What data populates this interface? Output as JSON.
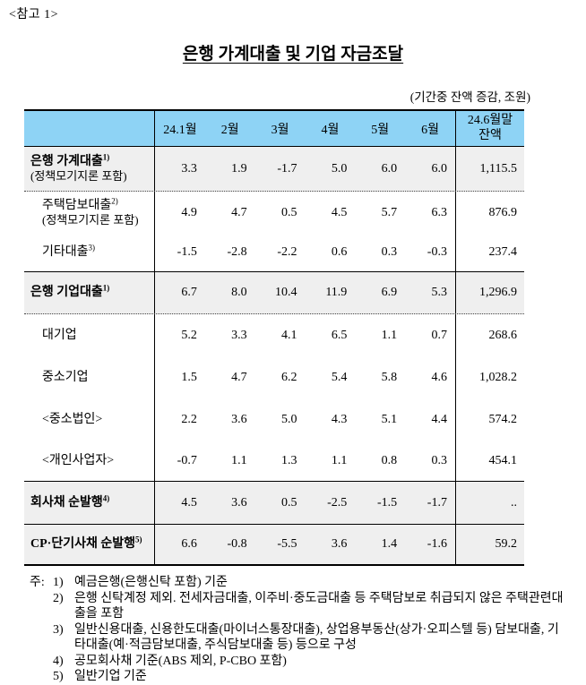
{
  "reference_label": "<참고 1>",
  "title": "은행 가계대출 및 기업 자금조달",
  "unit_note": "(기간중 잔액 증감, 조원)",
  "colors": {
    "header_blue": "#8ed3f5",
    "shaded_row_gray": "#efefef",
    "text": "#000000"
  },
  "table": {
    "columns": [
      "24.1월",
      "2월",
      "3월",
      "4월",
      "5월",
      "6월"
    ],
    "balance_header_line1": "24.6월말",
    "balance_header_line2": "잔액",
    "rows": [
      {
        "label": "은행 가계대출",
        "sup": "1)",
        "sublabel": "(정책모기지론 포함)",
        "values": [
          "3.3",
          "1.9",
          "-1.7",
          "5.0",
          "6.0",
          "6.0"
        ],
        "balance": "1,115.5"
      },
      {
        "label": "주택담보대출",
        "sup": "2)",
        "sublabel": "(정책모기지론 포함)",
        "values": [
          "4.9",
          "4.7",
          "0.5",
          "4.5",
          "5.7",
          "6.3"
        ],
        "balance": "876.9"
      },
      {
        "label": "기타대출",
        "sup": "3)",
        "sublabel": "",
        "values": [
          "-1.5",
          "-2.8",
          "-2.2",
          "0.6",
          "0.3",
          "-0.3"
        ],
        "balance": "237.4"
      },
      {
        "label": "은행 기업대출",
        "sup": "1)",
        "sublabel": "",
        "values": [
          "6.7",
          "8.0",
          "10.4",
          "11.9",
          "6.9",
          "5.3"
        ],
        "balance": "1,296.9"
      },
      {
        "label": "대기업",
        "sup": "",
        "sublabel": "",
        "values": [
          "5.2",
          "3.3",
          "4.1",
          "6.5",
          "1.1",
          "0.7"
        ],
        "balance": "268.6"
      },
      {
        "label": "중소기업",
        "sup": "",
        "sublabel": "",
        "values": [
          "1.5",
          "4.7",
          "6.2",
          "5.4",
          "5.8",
          "4.6"
        ],
        "balance": "1,028.2"
      },
      {
        "label": "<중소법인>",
        "sup": "",
        "sublabel": "",
        "values": [
          "2.2",
          "3.6",
          "5.0",
          "4.3",
          "5.1",
          "4.4"
        ],
        "balance": "574.2"
      },
      {
        "label": "<개인사업자>",
        "sup": "",
        "sublabel": "",
        "values": [
          "-0.7",
          "1.1",
          "1.3",
          "1.1",
          "0.8",
          "0.3"
        ],
        "balance": "454.1"
      },
      {
        "label": "회사채 순발행",
        "sup": "4)",
        "sublabel": "",
        "values": [
          "4.5",
          "3.6",
          "0.5",
          "-2.5",
          "-1.5",
          "-1.7"
        ],
        "balance": ".."
      },
      {
        "label": "CP·단기사채 순발행",
        "sup": "5)",
        "sublabel": "",
        "values": [
          "6.6",
          "-0.8",
          "-5.5",
          "3.6",
          "1.4",
          "-1.6"
        ],
        "balance": "59.2"
      }
    ]
  },
  "notes": {
    "prefix": "주:",
    "items": [
      {
        "num": "1)",
        "text": "예금은행(은행신탁 포함) 기준"
      },
      {
        "num": "2)",
        "text": "은행 신탁계정 제외. 전세자금대출, 이주비·중도금대출 등 주택담보로 취급되지 않은 주택관련대출을 포함"
      },
      {
        "num": "3)",
        "text": "일반신용대출, 신용한도대출(마이너스통장대출), 상업용부동산(상가·오피스텔 등) 담보대출, 기타대출(예·적금담보대출, 주식담보대출 등) 등으로 구성"
      },
      {
        "num": "4)",
        "text": "공모회사채 기준(ABS 제외, P-CBO 포함)"
      },
      {
        "num": "5)",
        "text": "일반기업 기준"
      }
    ]
  }
}
